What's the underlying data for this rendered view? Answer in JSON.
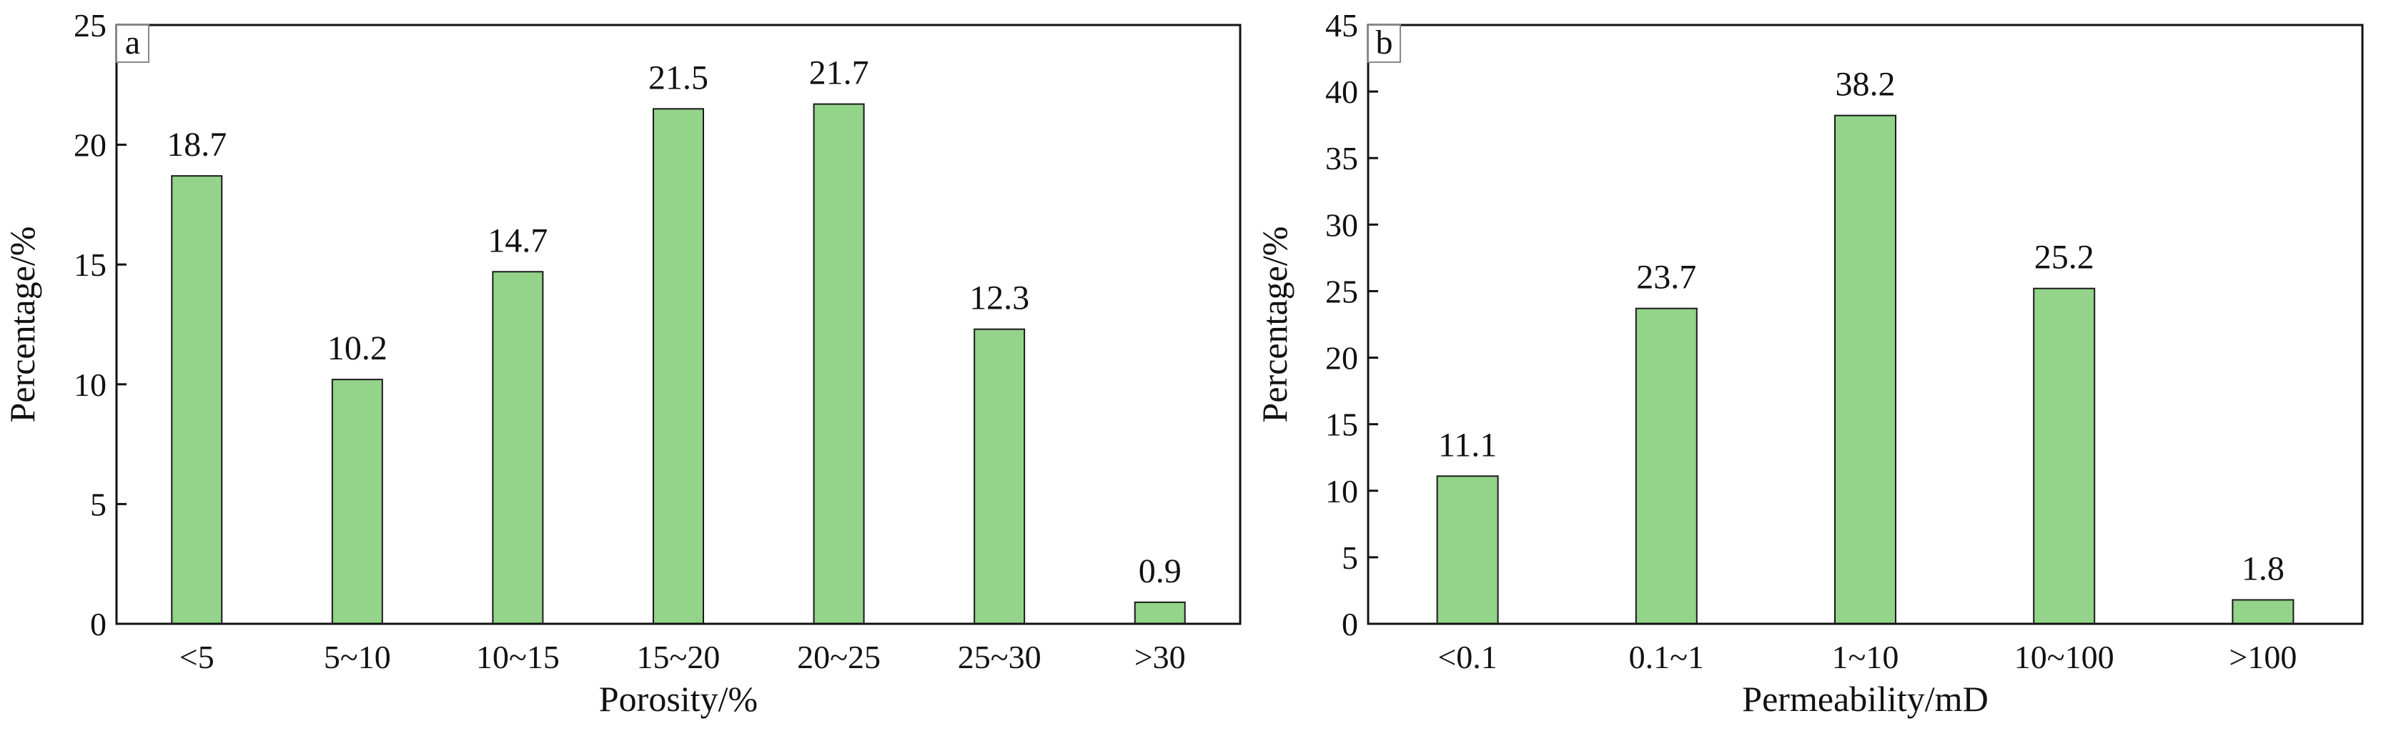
{
  "colors": {
    "bar_fill": "#93d38a",
    "bar_stroke": "#1a1a1a",
    "axis": "#111111",
    "text": "#111111"
  },
  "chart_data": [
    {
      "type": "bar",
      "panel": "a",
      "categories": [
        "<5",
        "5~10",
        "10~15",
        "15~20",
        "20~25",
        "25~30",
        ">30"
      ],
      "values": [
        18.7,
        10.2,
        14.7,
        21.5,
        21.7,
        12.3,
        0.9
      ],
      "value_labels": [
        "18.7",
        "10.2",
        "14.7",
        "21.5",
        "21.7",
        "12.3",
        "0.9"
      ],
      "xlabel": "Porosity/%",
      "ylabel": "Percentage/%",
      "ylim": [
        0,
        25
      ],
      "yticks": [
        0,
        5,
        10,
        15,
        20,
        25
      ],
      "grid": false,
      "legend": "none"
    },
    {
      "type": "bar",
      "panel": "b",
      "categories": [
        "<0.1",
        "0.1~1",
        "1~10",
        "10~100",
        ">100"
      ],
      "values": [
        11.1,
        23.7,
        38.2,
        25.2,
        1.8
      ],
      "value_labels": [
        "11.1",
        "23.7",
        "38.2",
        "25.2",
        "1.8"
      ],
      "xlabel": "Permeability/mD",
      "ylabel": "Percentage/%",
      "ylim": [
        0,
        45
      ],
      "yticks": [
        0,
        5,
        10,
        15,
        20,
        25,
        30,
        35,
        40,
        45
      ],
      "grid": false,
      "legend": "none"
    }
  ]
}
